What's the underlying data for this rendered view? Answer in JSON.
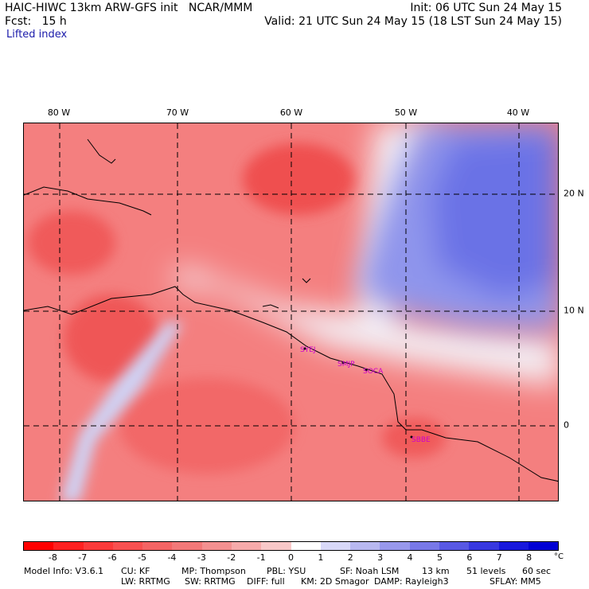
{
  "header": {
    "model_line": "HAIC-HIWC 13km ARW-GFS init   NCAR/MMM",
    "init_line": "Init: 06 UTC Sun 24 May 15",
    "fcst_line": "Fcst:   15 h",
    "valid_line": "Valid: 21 UTC Sun 24 May 15 (18 LST Sun 24 May 15)",
    "field": "Lifted index"
  },
  "map": {
    "lon_labels": [
      "80 W",
      "70 W",
      "60 W",
      "50 W",
      "40 W"
    ],
    "lat_labels": [
      "20 N",
      "10 N",
      "0"
    ],
    "stations": [
      "SYEJ",
      "SMJP",
      "SOCA",
      "SBBE"
    ],
    "colors": {
      "warm": "#f26a6a",
      "warm_light": "#f7a4a4",
      "neutral": "#f3eef4",
      "cool": "#8c93ec",
      "cool_dark": "#5c64e4"
    }
  },
  "colorbar": {
    "ticks": [
      "-8",
      "-7",
      "-6",
      "-5",
      "-4",
      "-3",
      "-2",
      "-1",
      "0",
      "1",
      "2",
      "3",
      "4",
      "5",
      "6",
      "7",
      "8"
    ],
    "unit": "°C",
    "colors": [
      "#ff0000",
      "#ff2020",
      "#fb3a3a",
      "#f85050",
      "#f46464",
      "#f27878",
      "#f39090",
      "#f6aaaa",
      "#f8c8c8",
      "#ffffff",
      "#d8d8f8",
      "#b8b8f0",
      "#9898ec",
      "#7878e8",
      "#5858e4",
      "#3838e0",
      "#1818dc",
      "#0000d4"
    ]
  },
  "footer": {
    "line1": [
      "Model Info: V3.6.1",
      "CU: KF",
      "MP: Thompson",
      "PBL: YSU",
      "SF: Noah LSM",
      "13 km",
      "51 levels",
      "60 sec"
    ],
    "line2": [
      "LW: RRTMG",
      "SW: RRTMG",
      "DIFF: full",
      "KM: 2D Smagor",
      "DAMP: Rayleigh3",
      "SFLAY: MM5"
    ]
  }
}
